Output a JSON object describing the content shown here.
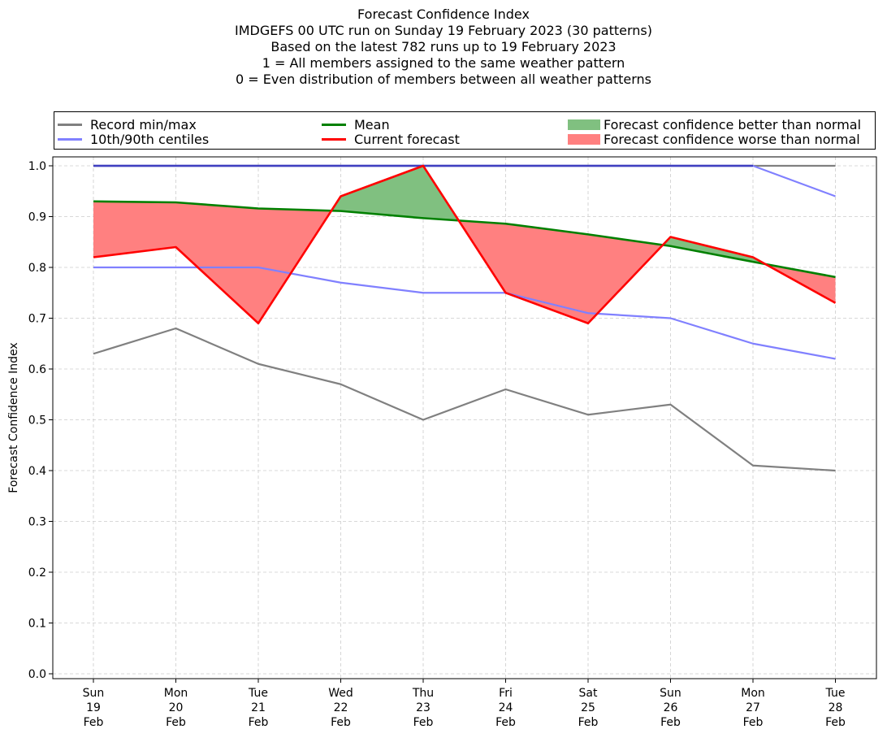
{
  "title_lines": [
    "Forecast Confidence Index",
    "IMDGEFS 00 UTC run on Sunday 19 February 2023 (30 patterns)",
    "Based on the latest 782 runs up to 19 February 2023",
    "1 = All members assigned to the same weather pattern",
    "0 = Even distribution of members between all weather patterns"
  ],
  "legend": {
    "record": "Record min/max",
    "centiles": "10th/90th centiles",
    "mean": "Mean",
    "current": "Current forecast",
    "better": "Forecast confidence better than normal",
    "worse": "Forecast confidence worse than normal"
  },
  "colors": {
    "record": "#808080",
    "centiles": "#8080ff",
    "mean": "#008000",
    "current": "#ff0000",
    "better": "#80c080",
    "worse": "#ff8080",
    "overlap": "#4040c0"
  },
  "chart_data": {
    "type": "line",
    "ylabel": "Forecast Confidence Index",
    "ylim": [
      0,
      1.0
    ],
    "yticks": [
      "0.0",
      "0.1",
      "0.2",
      "0.3",
      "0.4",
      "0.5",
      "0.6",
      "0.7",
      "0.8",
      "0.9",
      "1.0"
    ],
    "grid": true,
    "legend_position": "top",
    "categories": [
      [
        "Sun",
        "19",
        "Feb"
      ],
      [
        "Mon",
        "20",
        "Feb"
      ],
      [
        "Tue",
        "21",
        "Feb"
      ],
      [
        "Wed",
        "22",
        "Feb"
      ],
      [
        "Thu",
        "23",
        "Feb"
      ],
      [
        "Fri",
        "24",
        "Feb"
      ],
      [
        "Sat",
        "25",
        "Feb"
      ],
      [
        "Sun",
        "26",
        "Feb"
      ],
      [
        "Mon",
        "27",
        "Feb"
      ],
      [
        "Tue",
        "28",
        "Feb"
      ]
    ],
    "series": [
      {
        "name": "Record min/max",
        "key": "record_min",
        "values": [
          0.63,
          0.68,
          0.61,
          0.57,
          0.5,
          0.56,
          0.51,
          0.53,
          0.41,
          0.4
        ]
      },
      {
        "name": "Record min/max",
        "key": "record_max",
        "values": [
          1.0,
          1.0,
          1.0,
          1.0,
          1.0,
          1.0,
          1.0,
          1.0,
          1.0,
          1.0
        ]
      },
      {
        "name": "10th/90th centiles",
        "key": "p10",
        "values": [
          0.8,
          0.8,
          0.8,
          0.77,
          0.75,
          0.75,
          0.71,
          0.7,
          0.65,
          0.62
        ]
      },
      {
        "name": "10th/90th centiles",
        "key": "p90",
        "values": [
          1.0,
          1.0,
          1.0,
          1.0,
          1.0,
          1.0,
          1.0,
          1.0,
          1.0,
          0.94
        ]
      },
      {
        "name": "Mean",
        "key": "mean",
        "values": [
          0.93,
          0.928,
          0.916,
          0.911,
          0.897,
          0.886,
          0.865,
          0.842,
          0.811,
          0.781
        ]
      },
      {
        "name": "Current forecast",
        "key": "current",
        "values": [
          0.82,
          0.84,
          0.69,
          0.94,
          1.0,
          0.75,
          0.69,
          0.86,
          0.82,
          0.73
        ]
      }
    ]
  }
}
